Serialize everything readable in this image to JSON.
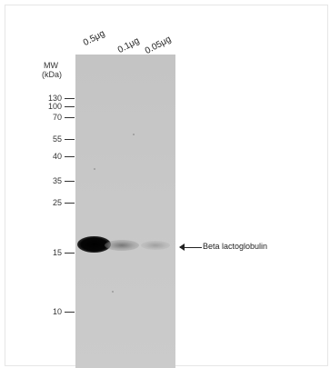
{
  "lanes": [
    "0.5μg",
    "0.1μg",
    "0.05μg"
  ],
  "mw_header": {
    "line1": "MW",
    "line2": "(kDa)"
  },
  "markers": [
    "130",
    "100",
    "70",
    "55",
    "40",
    "35",
    "25",
    "15",
    "10"
  ],
  "target": {
    "label": "Beta lactoglobulin"
  }
}
